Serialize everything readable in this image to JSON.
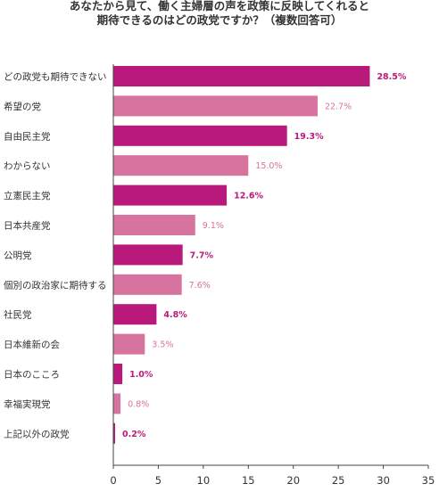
{
  "chart_data": {
    "type": "bar",
    "orientation": "horizontal",
    "title_lines": [
      "あなたから見て、働く主婦層の声を政策に反映してくれると",
      "期待できるのはどの政党ですか？（複数回答可）"
    ],
    "categories": [
      "どの政党も期待できない",
      "希望の党",
      "自由民主党",
      "わからない",
      "立憲民主党",
      "日本共産党",
      "公明党",
      "個別の政治家に期待する",
      "社民党",
      "日本維新の会",
      "日本のこころ",
      "幸福実現党",
      "上記以外の政党"
    ],
    "values": [
      28.5,
      22.7,
      19.3,
      15.0,
      12.6,
      9.1,
      7.7,
      7.6,
      4.8,
      3.5,
      1.0,
      0.8,
      0.2
    ],
    "value_labels": [
      "28.5%",
      "22.7%",
      "19.3%",
      "15.0%",
      "12.6%",
      "9.1%",
      "7.7%",
      "7.6%",
      "4.8%",
      "3.5%",
      "1.0%",
      "0.8%",
      "0.2%"
    ],
    "xlim": [
      0,
      35
    ],
    "xticks": [
      "0",
      "5",
      "10",
      "15",
      "20",
      "25",
      "30",
      "35"
    ],
    "grid": false,
    "colors": {
      "dark": "#b8197a",
      "light": "#d6739f",
      "axis": "#444444"
    }
  }
}
